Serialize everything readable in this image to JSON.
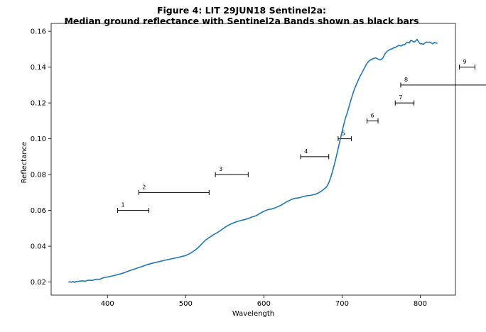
{
  "chart_data": {
    "type": "line",
    "title_line1": "Figure 4: LIT 29JUN18  Sentinel2a:",
    "title_line2": "Median ground reflectance with Sentinel2a Bands shown as black bars",
    "xlabel": "Wavelength",
    "ylabel": "Reflectance",
    "xlim": [
      328,
      845
    ],
    "ylim": [
      0.0127,
      0.1644
    ],
    "x_ticks": [
      400,
      500,
      600,
      700,
      800
    ],
    "y_ticks": [
      0.02,
      0.04,
      0.06,
      0.08,
      0.1,
      0.12,
      0.14,
      0.16
    ],
    "x_tick_labels": [
      "400",
      "500",
      "600",
      "700",
      "800"
    ],
    "y_tick_labels": [
      "0.02",
      "0.04",
      "0.06",
      "0.08",
      "0.10",
      "0.12",
      "0.14",
      "0.16"
    ],
    "grid": false,
    "series": [
      {
        "color": "#1f77b4",
        "x": [
          350,
          352,
          354,
          356,
          358,
          360,
          363,
          366,
          369,
          372,
          375,
          378,
          381,
          384,
          387,
          390,
          393,
          396,
          400,
          405,
          410,
          415,
          420,
          425,
          430,
          435,
          440,
          445,
          450,
          455,
          460,
          470,
          480,
          490,
          500,
          505,
          510,
          515,
          520,
          525,
          530,
          535,
          540,
          545,
          550,
          555,
          560,
          565,
          570,
          575,
          580,
          585,
          590,
          595,
          600,
          605,
          610,
          615,
          620,
          625,
          630,
          635,
          640,
          645,
          650,
          655,
          660,
          665,
          670,
          675,
          680,
          683,
          686,
          689,
          692,
          695,
          698,
          701,
          704,
          707,
          710,
          713,
          716,
          719,
          722,
          725,
          728,
          731,
          734,
          737,
          740,
          743,
          746,
          749,
          752,
          755,
          758,
          760,
          762,
          764,
          766,
          768,
          770,
          772,
          774,
          776,
          778,
          780,
          782,
          784,
          786,
          788,
          790,
          792,
          794,
          796,
          798,
          800,
          802,
          804,
          806,
          808,
          810,
          812,
          814,
          816,
          818,
          820,
          822
        ],
        "y": [
          0.02,
          0.0201,
          0.0199,
          0.0203,
          0.0198,
          0.0203,
          0.0204,
          0.0206,
          0.0206,
          0.0205,
          0.021,
          0.021,
          0.0209,
          0.0214,
          0.0216,
          0.0215,
          0.0221,
          0.0225,
          0.0228,
          0.0233,
          0.0238,
          0.0244,
          0.025,
          0.0258,
          0.0266,
          0.0273,
          0.0281,
          0.0288,
          0.0296,
          0.0302,
          0.0308,
          0.0318,
          0.0328,
          0.0337,
          0.0348,
          0.0358,
          0.0372,
          0.0388,
          0.041,
          0.0433,
          0.0448,
          0.0463,
          0.0475,
          0.0489,
          0.0505,
          0.0518,
          0.0528,
          0.0537,
          0.0543,
          0.0548,
          0.0555,
          0.0563,
          0.057,
          0.0583,
          0.0595,
          0.0604,
          0.0608,
          0.0615,
          0.0625,
          0.0637,
          0.065,
          0.066,
          0.0668,
          0.067,
          0.0677,
          0.0682,
          0.0684,
          0.0689,
          0.0698,
          0.0712,
          0.073,
          0.0754,
          0.079,
          0.0837,
          0.0888,
          0.0945,
          0.1002,
          0.1058,
          0.111,
          0.115,
          0.1197,
          0.124,
          0.128,
          0.131,
          0.134,
          0.1365,
          0.139,
          0.1415,
          0.1432,
          0.1442,
          0.1448,
          0.1452,
          0.1445,
          0.144,
          0.145,
          0.1475,
          0.149,
          0.1495,
          0.15,
          0.1502,
          0.1508,
          0.151,
          0.1515,
          0.152,
          0.152,
          0.1518,
          0.1525,
          0.1525,
          0.1535,
          0.154,
          0.1535,
          0.155,
          0.1545,
          0.154,
          0.1545,
          0.1555,
          0.154,
          0.153,
          0.153,
          0.1528,
          0.1535,
          0.154,
          0.1538,
          0.154,
          0.1535,
          0.153,
          0.1538,
          0.1535,
          0.1532
        ]
      }
    ],
    "bands": [
      {
        "label": "1",
        "x_start": 413,
        "x_end": 453,
        "y": 0.06
      },
      {
        "label": "2",
        "x_start": 440,
        "x_end": 530,
        "y": 0.07
      },
      {
        "label": "3",
        "x_start": 538,
        "x_end": 580,
        "y": 0.08
      },
      {
        "label": "4",
        "x_start": 647,
        "x_end": 683,
        "y": 0.09
      },
      {
        "label": "5",
        "x_start": 695,
        "x_end": 712,
        "y": 0.1
      },
      {
        "label": "6",
        "x_start": 732,
        "x_end": 746,
        "y": 0.11
      },
      {
        "label": "7",
        "x_start": 768,
        "x_end": 792,
        "y": 0.12
      },
      {
        "label": "8",
        "x_start": 775,
        "x_end": 900,
        "y": 0.13
      },
      {
        "label": "9",
        "x_start": 850,
        "x_end": 870,
        "y": 0.14
      }
    ]
  }
}
